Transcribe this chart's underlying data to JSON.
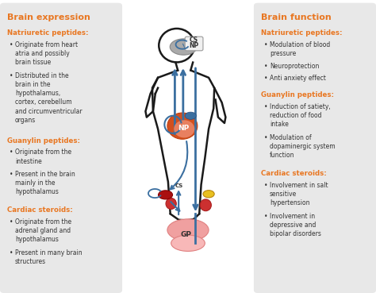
{
  "background_color": "#ffffff",
  "panel_bg_color": "#e8e8e8",
  "left_panel": {
    "title": "Brain expression",
    "title_color": "#E87722",
    "sections": [
      {
        "heading": "Natriuretic peptides:",
        "heading_color": "#E87722",
        "bullets": [
          "Originate from heart\natria and possibly\nbrain tissue",
          "Distributed in the\nbrain in the\nhypothalamus,\ncortex, cerebellum\nand circumventricular\norgans"
        ]
      },
      {
        "heading": "Guanylin peptides:",
        "heading_color": "#E87722",
        "bullets": [
          "Originate from the\nintestine",
          "Present in the brain\nmainly in the\nhypothalamus"
        ]
      },
      {
        "heading": "Cardiac steroids:",
        "heading_color": "#E87722",
        "bullets": [
          "Originate from the\nadrenal gland and\nhypothalamus",
          "Present in many brain\nstructures"
        ]
      }
    ]
  },
  "right_panel": {
    "title": "Brain function",
    "title_color": "#E87722",
    "sections": [
      {
        "heading": "Natriuretic peptides:",
        "heading_color": "#E87722",
        "bullets": [
          "Modulation of blood\npressure",
          "Neuroprotection",
          "Anti anxiety effect"
        ]
      },
      {
        "heading": "Guanylin peptides:",
        "heading_color": "#E87722",
        "bullets": [
          "Induction of satiety,\nreduction of food\nintake",
          "Modulation of\ndopaminergic system\nfunction"
        ]
      },
      {
        "heading": "Cardiac steroids:",
        "heading_color": "#E87722",
        "bullets": [
          "Involvement in salt\nsensitive\nhypertension",
          "Involvement in\ndepressive and\nbipolar disorders"
        ]
      }
    ]
  },
  "arrow_color": "#3B6FA0",
  "body_color": "#1a1a1a",
  "brain_fill": "#AAAAAA",
  "brain_box_fill": "#f0f0f0",
  "heart_fill": "#D2501E",
  "heart_dark": "#C04010",
  "heart_blue_bump": "#3B6FA0",
  "gut_fill": "#F0A0A0",
  "gut_dark": "#E08080",
  "adrenal_left_fill": "#AA1010",
  "adrenal_right_fill": "#E8C020",
  "kidney_fill": "#CC3030"
}
